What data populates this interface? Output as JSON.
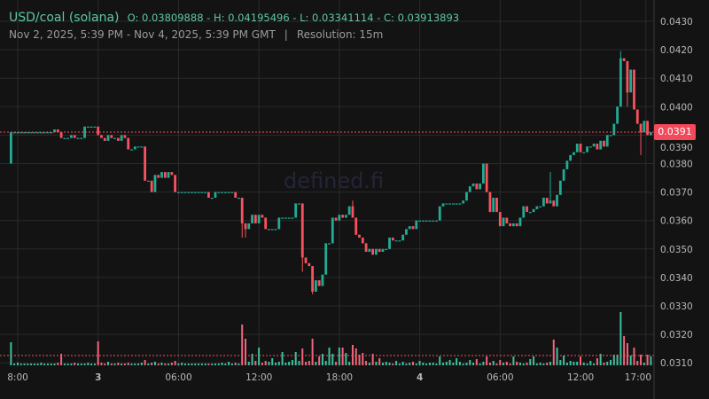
{
  "header": {
    "pair": "USD/coal (solana)",
    "ohlc": "O: 0.03809888 - H: 0.04195496 - L: 0.03341114 - C: 0.03913893",
    "range": "Nov 2, 2025, 5:39 PM - Nov 4, 2025, 5:39 PM GMT",
    "separator": "|",
    "resolution": "Resolution: 15m"
  },
  "watermark": "defined.fi",
  "colors": {
    "up": "#22ab94",
    "down": "#f7525f",
    "background": "#131313",
    "grid": "#2a2a2a",
    "last_price": "#f2495b"
  },
  "chart_data": {
    "type": "candlestick",
    "interval": "15m",
    "ylim": [
      0.0305,
      0.0433
    ],
    "grid": true,
    "price_ticks": [
      "0.0430",
      "0.0420",
      "0.0410",
      "0.0400",
      "0.0390",
      "0.0380",
      "0.0370",
      "0.0360",
      "0.0350",
      "0.0340",
      "0.0330",
      "0.0320",
      "0.0310"
    ],
    "time_ticks": [
      {
        "label": "8:00",
        "bold": false
      },
      {
        "label": "3",
        "bold": true
      },
      {
        "label": "06:00",
        "bold": false
      },
      {
        "label": "12:00",
        "bold": false
      },
      {
        "label": "18:00",
        "bold": false
      },
      {
        "label": "4",
        "bold": true
      },
      {
        "label": "06:00",
        "bold": false
      },
      {
        "label": "12:00",
        "bold": false
      },
      {
        "label": "17:00",
        "bold": false
      }
    ],
    "last_price": "0.0391",
    "first_open": 0.038,
    "close": [
      0.0391,
      0.0391,
      0.0391,
      0.0391,
      0.0391,
      0.0391,
      0.0391,
      0.0391,
      0.0391,
      0.0391,
      0.0391,
      0.0391,
      0.0391,
      0.0392,
      0.0391,
      0.0389,
      0.0389,
      0.0389,
      0.039,
      0.0389,
      0.0389,
      0.0389,
      0.0393,
      0.0393,
      0.0393,
      0.0393,
      0.039,
      0.0389,
      0.0388,
      0.039,
      0.0389,
      0.0389,
      0.0388,
      0.039,
      0.0389,
      0.0385,
      0.0385,
      0.0386,
      0.0386,
      0.0386,
      0.0374,
      0.0374,
      0.037,
      0.0376,
      0.0375,
      0.0377,
      0.0375,
      0.0377,
      0.0376,
      0.037,
      0.037,
      0.037,
      0.037,
      0.037,
      0.037,
      0.037,
      0.037,
      0.037,
      0.037,
      0.0368,
      0.0368,
      0.037,
      0.037,
      0.037,
      0.037,
      0.037,
      0.037,
      0.0368,
      0.0368,
      0.0359,
      0.0357,
      0.0359,
      0.0362,
      0.0359,
      0.0362,
      0.0361,
      0.0357,
      0.0357,
      0.0357,
      0.0357,
      0.0361,
      0.0361,
      0.0361,
      0.0361,
      0.0361,
      0.0366,
      0.0366,
      0.0347,
      0.0345,
      0.0344,
      0.0335,
      0.0339,
      0.0337,
      0.0341,
      0.0352,
      0.0352,
      0.0361,
      0.036,
      0.0362,
      0.0361,
      0.0362,
      0.0365,
      0.0361,
      0.0355,
      0.0354,
      0.0352,
      0.0349,
      0.035,
      0.0348,
      0.035,
      0.0349,
      0.035,
      0.035,
      0.0354,
      0.0353,
      0.0353,
      0.0353,
      0.0355,
      0.0357,
      0.0358,
      0.0357,
      0.036,
      0.036,
      0.036,
      0.036,
      0.036,
      0.036,
      0.036,
      0.0365,
      0.0366,
      0.0366,
      0.0366,
      0.0366,
      0.0366,
      0.0366,
      0.0367,
      0.037,
      0.0372,
      0.0373,
      0.0371,
      0.0373,
      0.038,
      0.037,
      0.0363,
      0.0368,
      0.0363,
      0.0358,
      0.0361,
      0.0359,
      0.0358,
      0.0359,
      0.0358,
      0.0361,
      0.0365,
      0.0363,
      0.0363,
      0.0364,
      0.0365,
      0.0365,
      0.0368,
      0.0366,
      0.0367,
      0.0365,
      0.0369,
      0.0374,
      0.0378,
      0.0381,
      0.0383,
      0.0384,
      0.0387,
      0.0384,
      0.0384,
      0.0386,
      0.0386,
      0.0387,
      0.0385,
      0.0388,
      0.0386,
      0.039,
      0.039,
      0.0394,
      0.04,
      0.0417,
      0.0416,
      0.0405,
      0.0413,
      0.0399,
      0.0394,
      0.0391,
      0.0395,
      0.039,
      0.0391
    ],
    "wick_overrides": [
      {
        "index": 69,
        "low": 0.0354
      },
      {
        "index": 70,
        "low": 0.0354
      },
      {
        "index": 87,
        "low": 0.0342
      },
      {
        "index": 90,
        "low": 0.03341
      },
      {
        "index": 102,
        "high": 0.0367
      },
      {
        "index": 161,
        "high": 0.0377
      },
      {
        "index": 182,
        "high": 0.04195
      },
      {
        "index": 184,
        "low": 0.04
      },
      {
        "index": 186,
        "high": 0.04
      },
      {
        "index": 188,
        "low": 0.0383
      }
    ],
    "volume": [
      26,
      2,
      3,
      2,
      2,
      2,
      2,
      2,
      2,
      3,
      2,
      2,
      2,
      2,
      3,
      13,
      2,
      2,
      2,
      3,
      2,
      2,
      2,
      3,
      2,
      2,
      27,
      3,
      2,
      4,
      2,
      2,
      3,
      2,
      2,
      3,
      2,
      2,
      2,
      3,
      6,
      2,
      3,
      4,
      2,
      3,
      2,
      2,
      3,
      5,
      2,
      3,
      2,
      2,
      2,
      2,
      2,
      2,
      2,
      2,
      2,
      2,
      2,
      3,
      2,
      4,
      2,
      3,
      2,
      46,
      30,
      4,
      13,
      5,
      20,
      3,
      5,
      4,
      8,
      3,
      4,
      15,
      3,
      4,
      6,
      15,
      5,
      19,
      4,
      5,
      30,
      4,
      10,
      13,
      5,
      20,
      13,
      4,
      20,
      20,
      14,
      4,
      23,
      19,
      12,
      14,
      5,
      3,
      13,
      4,
      8,
      3,
      4,
      3,
      2,
      5,
      2,
      4,
      2,
      3,
      4,
      2,
      5,
      3,
      2,
      3,
      3,
      2,
      10,
      3,
      4,
      6,
      3,
      8,
      4,
      2,
      3,
      6,
      3,
      7,
      2,
      4,
      10,
      3,
      5,
      2,
      6,
      3,
      4,
      2,
      10,
      4,
      3,
      2,
      3,
      7,
      10,
      2,
      3,
      2,
      3,
      4,
      29,
      20,
      6,
      11,
      3,
      5,
      4,
      4,
      10,
      3,
      2,
      5,
      2,
      8,
      13,
      3,
      4,
      6,
      12,
      12,
      60,
      33,
      25,
      11,
      20,
      5,
      12,
      3,
      12,
      10
    ]
  }
}
